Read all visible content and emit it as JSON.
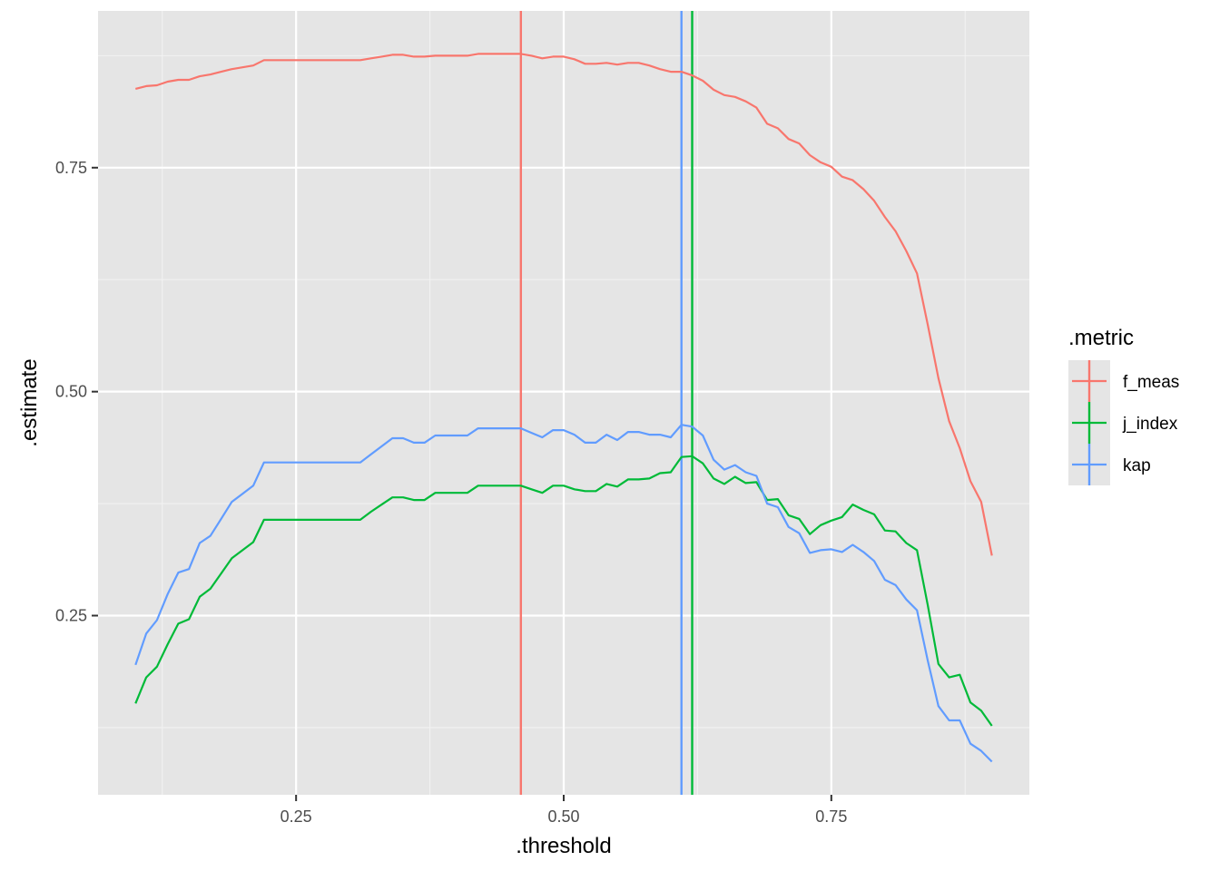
{
  "chart_data": {
    "type": "line",
    "xlabel": ".threshold",
    "ylabel": ".estimate",
    "xlim": [
      0.065,
      0.935
    ],
    "ylim": [
      0.05,
      0.925
    ],
    "x_major_ticks": [
      0.25,
      0.5,
      0.75
    ],
    "x_tick_labels": [
      "0.25",
      "0.50",
      "0.75"
    ],
    "x_minor_ticks": [
      0.125,
      0.375,
      0.625,
      0.875
    ],
    "y_major_ticks": [
      0.25,
      0.5,
      0.75
    ],
    "y_tick_labels": [
      "0.25",
      "0.50",
      "0.75"
    ],
    "y_minor_ticks": [
      0.125,
      0.375,
      0.625,
      0.875
    ],
    "grid": true,
    "background": "#e5e5e5",
    "legend": {
      "title": ".metric",
      "position": "right"
    },
    "series": [
      {
        "name": "f_meas",
        "color": "#f8766d",
        "threshold_line": 0.46,
        "x": [
          0.1,
          0.11,
          0.12,
          0.13,
          0.14,
          0.15,
          0.16,
          0.17,
          0.18,
          0.19,
          0.2,
          0.21,
          0.22,
          0.23,
          0.24,
          0.25,
          0.26,
          0.27,
          0.28,
          0.29,
          0.3,
          0.31,
          0.32,
          0.33,
          0.34,
          0.35,
          0.36,
          0.37,
          0.38,
          0.39,
          0.4,
          0.41,
          0.42,
          0.43,
          0.44,
          0.45,
          0.46,
          0.47,
          0.48,
          0.49,
          0.5,
          0.51,
          0.52,
          0.53,
          0.54,
          0.55,
          0.56,
          0.57,
          0.58,
          0.59,
          0.6,
          0.61,
          0.62,
          0.63,
          0.64,
          0.65,
          0.66,
          0.67,
          0.68,
          0.69,
          0.7,
          0.71,
          0.72,
          0.73,
          0.74,
          0.75,
          0.76,
          0.77,
          0.78,
          0.79,
          0.8,
          0.81,
          0.82,
          0.83,
          0.84,
          0.85,
          0.86,
          0.87,
          0.88,
          0.89,
          0.9
        ],
        "y": [
          0.838,
          0.841,
          0.842,
          0.846,
          0.848,
          0.848,
          0.852,
          0.854,
          0.857,
          0.86,
          0.862,
          0.864,
          0.87,
          0.87,
          0.87,
          0.87,
          0.87,
          0.87,
          0.87,
          0.87,
          0.87,
          0.87,
          0.872,
          0.874,
          0.876,
          0.876,
          0.874,
          0.874,
          0.875,
          0.875,
          0.875,
          0.875,
          0.877,
          0.877,
          0.877,
          0.877,
          0.877,
          0.875,
          0.872,
          0.874,
          0.874,
          0.871,
          0.866,
          0.866,
          0.867,
          0.865,
          0.867,
          0.867,
          0.864,
          0.86,
          0.857,
          0.857,
          0.853,
          0.847,
          0.837,
          0.831,
          0.829,
          0.824,
          0.817,
          0.799,
          0.794,
          0.782,
          0.777,
          0.764,
          0.756,
          0.751,
          0.74,
          0.736,
          0.726,
          0.713,
          0.695,
          0.679,
          0.657,
          0.632,
          0.575,
          0.515,
          0.467,
          0.437,
          0.4,
          0.377,
          0.317
        ]
      },
      {
        "name": "j_index",
        "color": "#00ba38",
        "threshold_line": 0.62,
        "x": [
          0.1,
          0.11,
          0.12,
          0.13,
          0.14,
          0.15,
          0.16,
          0.17,
          0.18,
          0.19,
          0.2,
          0.21,
          0.22,
          0.23,
          0.24,
          0.25,
          0.26,
          0.27,
          0.28,
          0.29,
          0.3,
          0.31,
          0.32,
          0.33,
          0.34,
          0.35,
          0.36,
          0.37,
          0.38,
          0.39,
          0.4,
          0.41,
          0.42,
          0.43,
          0.44,
          0.45,
          0.46,
          0.47,
          0.48,
          0.49,
          0.5,
          0.51,
          0.52,
          0.53,
          0.54,
          0.55,
          0.56,
          0.57,
          0.58,
          0.59,
          0.6,
          0.61,
          0.62,
          0.63,
          0.64,
          0.65,
          0.66,
          0.67,
          0.68,
          0.69,
          0.7,
          0.71,
          0.72,
          0.73,
          0.74,
          0.75,
          0.76,
          0.77,
          0.78,
          0.79,
          0.8,
          0.81,
          0.82,
          0.83,
          0.84,
          0.85,
          0.86,
          0.87,
          0.88,
          0.89,
          0.9
        ],
        "y": [
          0.152,
          0.181,
          0.193,
          0.218,
          0.241,
          0.246,
          0.271,
          0.28,
          0.297,
          0.314,
          0.323,
          0.332,
          0.357,
          0.357,
          0.357,
          0.357,
          0.357,
          0.357,
          0.357,
          0.357,
          0.357,
          0.357,
          0.366,
          0.374,
          0.382,
          0.382,
          0.379,
          0.379,
          0.387,
          0.387,
          0.387,
          0.387,
          0.395,
          0.395,
          0.395,
          0.395,
          0.395,
          0.391,
          0.387,
          0.395,
          0.395,
          0.391,
          0.389,
          0.389,
          0.397,
          0.394,
          0.402,
          0.402,
          0.403,
          0.409,
          0.41,
          0.427,
          0.428,
          0.42,
          0.403,
          0.397,
          0.405,
          0.398,
          0.399,
          0.379,
          0.38,
          0.362,
          0.358,
          0.341,
          0.351,
          0.356,
          0.36,
          0.374,
          0.368,
          0.363,
          0.345,
          0.344,
          0.331,
          0.323,
          0.262,
          0.196,
          0.181,
          0.184,
          0.153,
          0.144,
          0.127
        ]
      },
      {
        "name": "kap",
        "color": "#619cff",
        "threshold_line": 0.61,
        "x": [
          0.1,
          0.11,
          0.12,
          0.13,
          0.14,
          0.15,
          0.16,
          0.17,
          0.18,
          0.19,
          0.2,
          0.21,
          0.22,
          0.23,
          0.24,
          0.25,
          0.26,
          0.27,
          0.28,
          0.29,
          0.3,
          0.31,
          0.32,
          0.33,
          0.34,
          0.35,
          0.36,
          0.37,
          0.38,
          0.39,
          0.4,
          0.41,
          0.42,
          0.43,
          0.44,
          0.45,
          0.46,
          0.47,
          0.48,
          0.49,
          0.5,
          0.51,
          0.52,
          0.53,
          0.54,
          0.55,
          0.56,
          0.57,
          0.58,
          0.59,
          0.6,
          0.61,
          0.62,
          0.63,
          0.64,
          0.65,
          0.66,
          0.67,
          0.68,
          0.69,
          0.7,
          0.71,
          0.72,
          0.73,
          0.74,
          0.75,
          0.76,
          0.77,
          0.78,
          0.79,
          0.8,
          0.81,
          0.82,
          0.83,
          0.84,
          0.85,
          0.86,
          0.87,
          0.88,
          0.89,
          0.9
        ],
        "y": [
          0.195,
          0.23,
          0.245,
          0.274,
          0.298,
          0.302,
          0.331,
          0.339,
          0.358,
          0.377,
          0.386,
          0.395,
          0.421,
          0.421,
          0.421,
          0.421,
          0.421,
          0.421,
          0.421,
          0.421,
          0.421,
          0.421,
          0.43,
          0.439,
          0.448,
          0.448,
          0.443,
          0.443,
          0.451,
          0.451,
          0.451,
          0.451,
          0.459,
          0.459,
          0.459,
          0.459,
          0.459,
          0.454,
          0.449,
          0.457,
          0.457,
          0.452,
          0.443,
          0.443,
          0.452,
          0.446,
          0.455,
          0.455,
          0.452,
          0.452,
          0.449,
          0.463,
          0.461,
          0.451,
          0.424,
          0.413,
          0.418,
          0.41,
          0.406,
          0.375,
          0.371,
          0.349,
          0.342,
          0.32,
          0.323,
          0.324,
          0.321,
          0.329,
          0.321,
          0.311,
          0.29,
          0.284,
          0.268,
          0.256,
          0.2,
          0.149,
          0.133,
          0.133,
          0.107,
          0.099,
          0.087
        ]
      }
    ]
  }
}
